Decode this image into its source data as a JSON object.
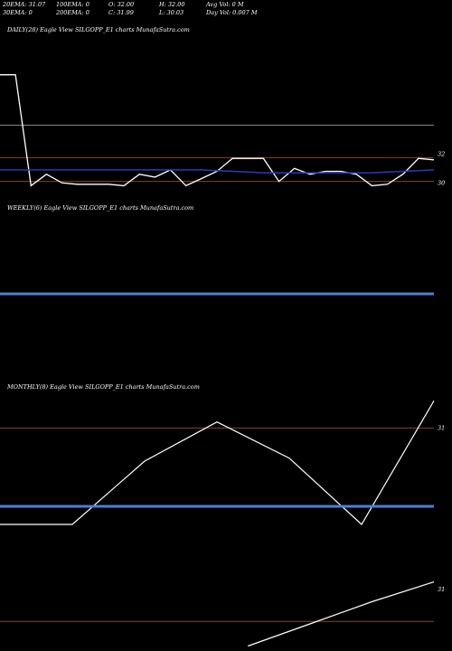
{
  "header": {
    "row1": [
      "20EMA: 31.07",
      "100EMA: 0",
      "O: 32.00",
      "H: 32.00",
      "Avg Vol: 0  M"
    ],
    "row2": [
      "30EMA: 0",
      "200EMA: 0",
      "C: 31.99",
      "L: 30.03",
      "Day Vol: 0.007 M"
    ]
  },
  "colors": {
    "background": "#000000",
    "price": "#ffffff",
    "ema": "#1f3fbf",
    "level": "#8b4513",
    "weekly_line": "#4a7fd4"
  },
  "chart_data": [
    {
      "type": "line",
      "title": "DAILY(28) Eagle  View  SILGOPP_E1 charts MunafaSutra.com",
      "yticks": [
        {
          "label": "32",
          "value": 32
        },
        {
          "label": "30",
          "value": 30
        }
      ],
      "series": [
        {
          "values": [
            37.5,
            37.5,
            29.8,
            30.6,
            30.0,
            29.9,
            29.9,
            29.9,
            29.8,
            30.6,
            30.4,
            30.9,
            29.8,
            30.3,
            30.8,
            31.7,
            31.7,
            31.7,
            30.1,
            31.0,
            30.6,
            30.8,
            30.8,
            30.6,
            29.8,
            29.9,
            30.6,
            31.7,
            31.6
          ]
        },
        {
          "values": [
            30.9,
            30.9,
            30.9,
            30.9,
            30.9,
            30.9,
            30.9,
            30.9,
            30.9,
            30.9,
            30.9,
            30.9,
            30.9,
            30.9,
            30.85,
            30.8,
            30.75,
            30.7,
            30.7,
            30.7,
            30.7,
            30.7,
            30.7,
            30.7,
            30.7,
            30.75,
            30.8,
            30.85,
            30.9
          ]
        }
      ],
      "levels": [
        34.0,
        31.75,
        30.1
      ]
    },
    {
      "type": "line",
      "title": "WEEKLY(6) Eagle  View  SILGOPP_E1 charts MunafaSutra.com",
      "yticks": [],
      "series": [
        {
          "values": [
            0,
            0,
            0,
            0,
            0,
            0
          ]
        }
      ]
    },
    {
      "type": "line",
      "title": "MONTHLY(8) Eagle  View  SILGOPP_E1 charts MunafaSutra.com",
      "yticks": [
        {
          "label": "31",
          "value": 31.6
        }
      ],
      "series": [
        {
          "values": [
            28.4,
            28.4,
            30.5,
            31.8,
            30.6,
            28.4,
            32.5
          ]
        },
        {
          "values": [
            29.0,
            29.0,
            29.0,
            29.0,
            29.0,
            29.0,
            29.0
          ]
        }
      ],
      "levels": [
        31.6,
        29.0
      ]
    },
    {
      "type": "line",
      "title": "",
      "yticks": [
        {
          "label": "31",
          "value": 31.2
        }
      ],
      "series": [
        {
          "values": [
            null,
            null,
            null,
            null,
            28.9,
            29.8,
            30.7,
            31.5
          ]
        }
      ],
      "levels": [
        29.9
      ]
    }
  ]
}
